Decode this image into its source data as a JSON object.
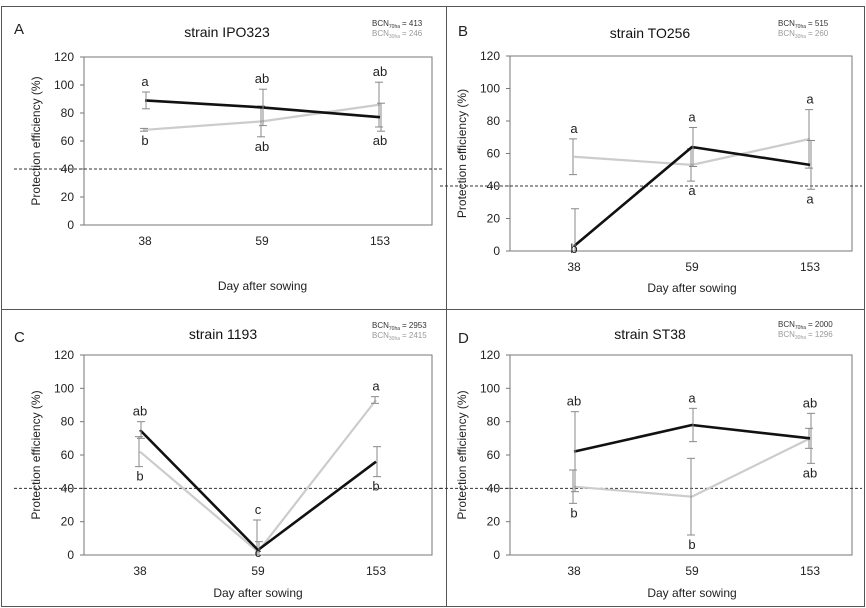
{
  "panels": [
    {
      "letter": "A",
      "title": "strain IPO323",
      "bcn_high_label": "BCN",
      "bcn_high_sub": "70ha",
      "bcn_high_value": "= 413",
      "bcn_low_label": "BCN",
      "bcn_low_sub": "30ha",
      "bcn_low_value": "= 246"
    },
    {
      "letter": "B",
      "title": "strain TO256",
      "bcn_high_label": "BCN",
      "bcn_high_sub": "70ha",
      "bcn_high_value": "= 515",
      "bcn_low_label": "BCN",
      "bcn_low_sub": "30ha",
      "bcn_low_value": "= 260"
    },
    {
      "letter": "C",
      "title": "strain 1193",
      "bcn_high_label": "BCN",
      "bcn_high_sub": "70ha",
      "bcn_high_value": "= 2953",
      "bcn_low_label": "BCN",
      "bcn_low_sub": "30ha",
      "bcn_low_value": "= 2415"
    },
    {
      "letter": "D",
      "title": "strain ST38",
      "bcn_high_label": "BCN",
      "bcn_high_sub": "70ha",
      "bcn_high_value": "= 2000",
      "bcn_low_label": "BCN",
      "bcn_low_sub": "30ha",
      "bcn_low_value": "= 1296"
    }
  ],
  "colors": {
    "dark_series": "#111111",
    "light_series": "#cccccc",
    "error_bar": "#888888",
    "reference_line": "#333333",
    "panel_border": "#555555"
  },
  "chart_data": [
    {
      "type": "line",
      "title": "strain IPO323",
      "xlabel": "Day after sowing",
      "ylabel": "Protection efficiency (%)",
      "categories": [
        "38",
        "59",
        "153"
      ],
      "ylim": [
        0,
        120
      ],
      "yticks": [
        "0",
        "20",
        "40",
        "60",
        "80",
        "100",
        "120"
      ],
      "reference_line": 40,
      "grid": false,
      "series": [
        {
          "color": "dark",
          "values": [
            89,
            84,
            77
          ],
          "errors": [
            6,
            13,
            10
          ],
          "letters": [
            "a",
            "ab",
            "ab"
          ]
        },
        {
          "color": "light",
          "values": [
            68,
            74,
            86
          ],
          "errors": [
            1,
            11,
            16
          ],
          "letters": [
            "b",
            "ab",
            "ab"
          ]
        }
      ]
    },
    {
      "type": "line",
      "title": "strain TO256",
      "xlabel": "Day after sowing",
      "ylabel": "Protection efficiency (%)",
      "categories": [
        "38",
        "59",
        "153"
      ],
      "ylim": [
        0,
        120
      ],
      "yticks": [
        "0",
        "20",
        "40",
        "60",
        "80",
        "100",
        "120"
      ],
      "reference_line": 40,
      "grid": false,
      "series": [
        {
          "color": "dark",
          "values": [
            3,
            64,
            53
          ],
          "errors": [
            23,
            12,
            15
          ],
          "letters": [
            "b",
            "a",
            "a"
          ]
        },
        {
          "color": "light",
          "values": [
            58,
            53,
            69
          ],
          "errors": [
            11,
            10,
            18
          ],
          "letters": [
            "a",
            "a",
            "a"
          ]
        }
      ]
    },
    {
      "type": "line",
      "title": "strain 1193",
      "xlabel": "Day after sowing",
      "ylabel": "Protection efficiency (%)",
      "categories": [
        "38",
        "59",
        "153"
      ],
      "ylim": [
        0,
        120
      ],
      "yticks": [
        "0",
        "20",
        "40",
        "60",
        "80",
        "100",
        "120"
      ],
      "reference_line": 40,
      "grid": false,
      "series": [
        {
          "color": "dark",
          "values": [
            75,
            3,
            56
          ],
          "errors": [
            5,
            5,
            9
          ],
          "letters": [
            "ab",
            "c",
            "b"
          ]
        },
        {
          "color": "light",
          "values": [
            62,
            2,
            93
          ],
          "errors": [
            9,
            19,
            2
          ],
          "letters": [
            "b",
            "c",
            "a"
          ]
        }
      ]
    },
    {
      "type": "line",
      "title": "strain ST38",
      "xlabel": "Day after sowing",
      "ylabel": "Protection efficiency (%)",
      "categories": [
        "38",
        "59",
        "153"
      ],
      "ylim": [
        0,
        120
      ],
      "yticks": [
        "0",
        "20",
        "40",
        "60",
        "80",
        "100",
        "120"
      ],
      "reference_line": 40,
      "grid": false,
      "series": [
        {
          "color": "dark",
          "values": [
            62,
            78,
            70
          ],
          "errors": [
            24,
            10,
            15
          ],
          "letters": [
            "ab",
            "a",
            "ab"
          ]
        },
        {
          "color": "light",
          "values": [
            41,
            35,
            70
          ],
          "errors": [
            10,
            23,
            6
          ],
          "letters": [
            "b",
            "b",
            "ab"
          ]
        }
      ]
    }
  ]
}
